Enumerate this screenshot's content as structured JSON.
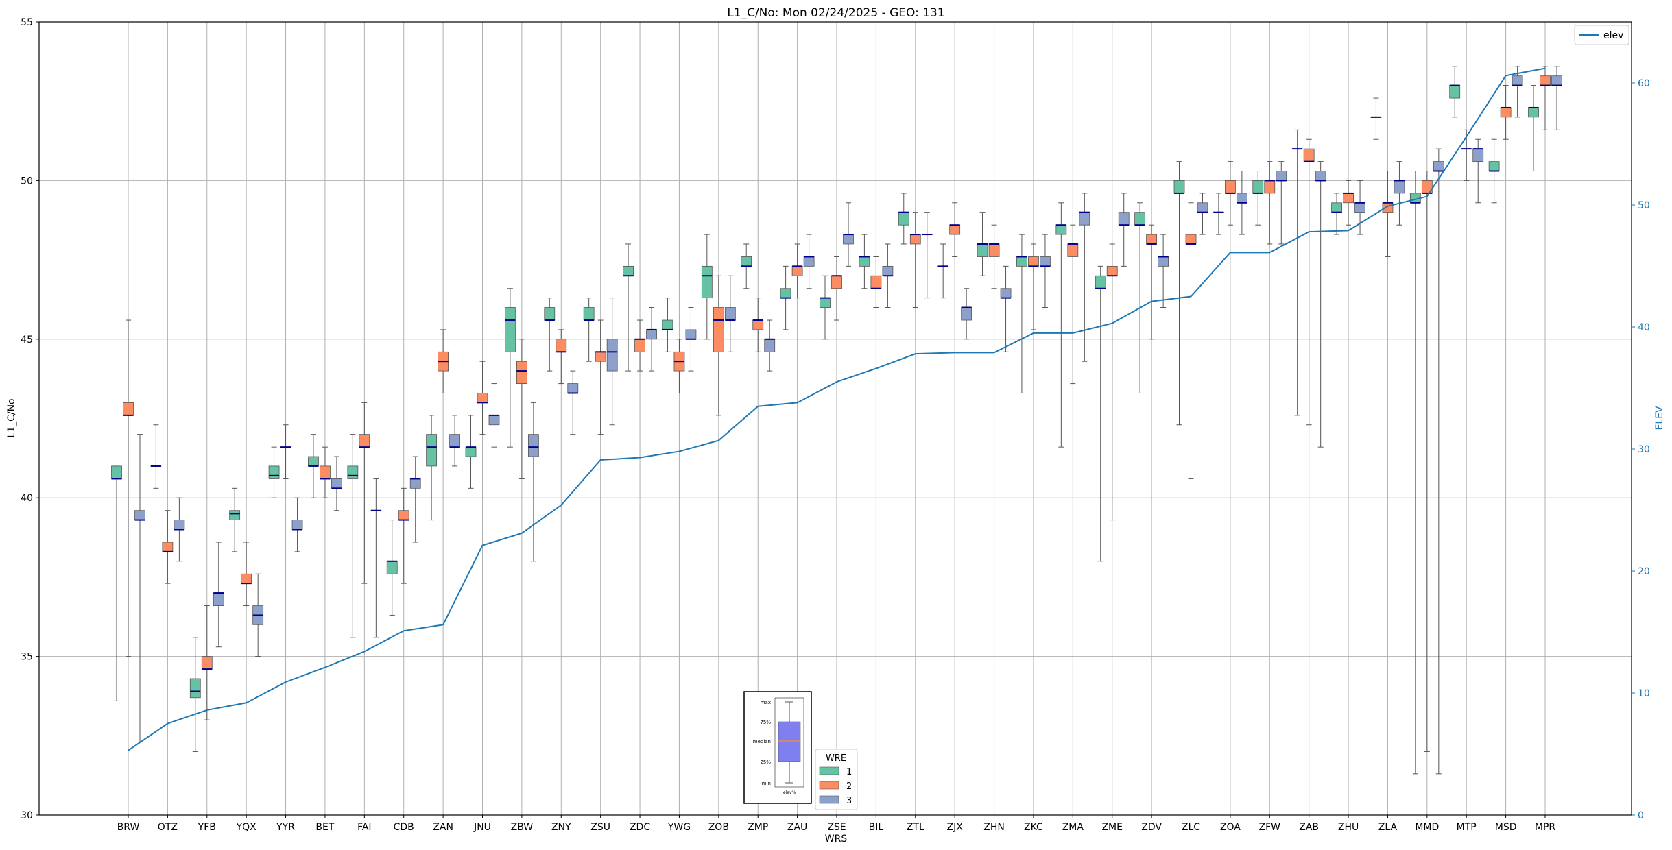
{
  "chart_data": {
    "type": "box",
    "title": "L1_C/No: Mon 02/24/2025 - GEO: 131",
    "xlabel": "WRS",
    "ylabel": "L1_C/No",
    "y2label": "ELEV",
    "ylim": [
      30,
      55
    ],
    "y2lim": [
      0,
      65
    ],
    "yticks": [
      "30",
      "35",
      "40",
      "45",
      "50",
      "55"
    ],
    "y2ticks": [
      "0",
      "10",
      "20",
      "30",
      "40",
      "50",
      "60"
    ],
    "grid": true,
    "legend_position": "top-right",
    "colors": {
      "wre1": "#66c2a5",
      "wre2": "#fc8d62",
      "wre3": "#8da0cb",
      "elev": "#1f77b4",
      "median": "#00008b",
      "whisker": "#555555",
      "grid": "#b0b0b0"
    },
    "categories": [
      "BRW",
      "OTZ",
      "YFB",
      "YQX",
      "YYR",
      "BET",
      "FAI",
      "CDB",
      "ZAN",
      "JNU",
      "ZBW",
      "ZNY",
      "ZSU",
      "ZDC",
      "YWG",
      "ZOB",
      "ZMP",
      "ZAU",
      "ZSE",
      "BIL",
      "ZTL",
      "ZJX",
      "ZHN",
      "ZKC",
      "ZMA",
      "ZME",
      "ZDV",
      "ZLC",
      "ZOA",
      "ZFW",
      "ZAB",
      "ZHU",
      "ZLA",
      "MMD",
      "MTP",
      "MSD",
      "MPR"
    ],
    "elevation_series": {
      "name": "elev",
      "values": [
        5.3,
        7.5,
        8.6,
        9.2,
        10.9,
        12.1,
        13.4,
        15.1,
        15.6,
        22.1,
        23.1,
        25.4,
        29.1,
        29.3,
        29.8,
        30.7,
        33.5,
        33.8,
        35.5,
        36.6,
        37.8,
        37.9,
        37.9,
        39.5,
        39.5,
        40.3,
        42.1,
        42.5,
        46.1,
        46.1,
        47.8,
        47.9,
        49.9,
        50.7,
        55.6,
        60.6,
        61.2
      ]
    },
    "wre_legend": {
      "title": "WRE",
      "items": [
        "1",
        "2",
        "3"
      ]
    },
    "inset_legend": {
      "labels": [
        "max",
        "75%",
        "median",
        "25%",
        "min"
      ],
      "xlabel": "elev%"
    },
    "series": [
      {
        "wre": 1,
        "stations": {
          "BRW": [
            33.6,
            40.6,
            40.6,
            41.0,
            41.0
          ],
          "OTZ": [
            40.3,
            41.0,
            41.0,
            41.0,
            42.3
          ],
          "YFB": [
            32.0,
            33.7,
            33.9,
            34.3,
            35.6
          ],
          "YQX": [
            38.3,
            39.3,
            39.5,
            39.6,
            40.3
          ],
          "YYR": [
            40.0,
            40.6,
            40.7,
            41.0,
            41.6
          ],
          "BET": [
            40.0,
            41.0,
            41.0,
            41.3,
            42.0
          ],
          "FAI": [
            35.6,
            40.6,
            40.7,
            41.0,
            42.0
          ],
          "CDB": [
            36.3,
            37.6,
            38.0,
            38.0,
            39.3
          ],
          "ZAN": [
            39.3,
            41.0,
            41.6,
            42.0,
            42.6
          ],
          "JNU": [
            40.3,
            41.3,
            41.6,
            41.6,
            42.6
          ],
          "ZBW": [
            41.6,
            44.6,
            45.6,
            46.0,
            46.6
          ],
          "ZNY": [
            44.0,
            45.6,
            45.6,
            46.0,
            46.3
          ],
          "ZSU": [
            44.3,
            45.6,
            45.6,
            46.0,
            46.3
          ],
          "ZDC": [
            44.0,
            47.0,
            47.0,
            47.3,
            48.0
          ],
          "YWG": [
            44.6,
            45.3,
            45.3,
            45.6,
            46.3
          ],
          "ZOB": [
            45.0,
            46.3,
            47.0,
            47.3,
            48.3
          ],
          "ZMP": [
            46.6,
            47.3,
            47.3,
            47.6,
            48.0
          ],
          "ZAU": [
            45.3,
            46.3,
            46.3,
            46.6,
            47.3
          ],
          "ZSE": [
            45.0,
            46.0,
            46.3,
            46.3,
            47.0
          ],
          "BIL": [
            46.6,
            47.3,
            47.6,
            47.6,
            48.3
          ],
          "ZTL": [
            48.0,
            48.6,
            49.0,
            49.0,
            49.6
          ],
          "ZJX": [
            46.3,
            47.3,
            47.3,
            47.3,
            48.0
          ],
          "ZHN": [
            47.0,
            47.6,
            48.0,
            48.0,
            49.0
          ],
          "ZKC": [
            43.3,
            47.3,
            47.6,
            47.6,
            48.3
          ],
          "ZMA": [
            41.6,
            48.3,
            48.6,
            48.6,
            49.3
          ],
          "ZME": [
            38.0,
            46.6,
            46.6,
            47.0,
            47.3
          ],
          "ZDV": [
            43.3,
            48.6,
            48.6,
            49.0,
            49.3
          ],
          "ZLC": [
            42.3,
            49.6,
            49.6,
            50.0,
            50.6
          ],
          "ZOA": [
            48.3,
            49.0,
            49.0,
            49.0,
            49.6
          ],
          "ZFW": [
            48.6,
            49.6,
            49.6,
            50.0,
            50.3
          ],
          "ZAB": [
            42.6,
            51.0,
            51.0,
            51.0,
            51.6
          ],
          "ZHU": [
            48.3,
            49.0,
            49.0,
            49.3,
            49.6
          ],
          "ZLA": [
            51.3,
            52.0,
            52.0,
            52.0,
            52.6
          ],
          "MMD": [
            31.3,
            49.3,
            49.3,
            49.6,
            50.3
          ],
          "MTP": [
            52.0,
            52.6,
            53.0,
            53.0,
            53.6
          ],
          "MSD": [
            49.3,
            50.3,
            50.3,
            50.6,
            51.3
          ],
          "MPR": [
            50.3,
            52.0,
            52.3,
            52.3,
            53.0
          ]
        }
      },
      {
        "wre": 2,
        "stations": {
          "BRW": [
            35.0,
            42.6,
            42.6,
            43.0,
            45.6
          ],
          "OTZ": [
            37.3,
            38.3,
            38.3,
            38.6,
            39.6
          ],
          "YFB": [
            33.0,
            34.6,
            34.6,
            35.0,
            36.6
          ],
          "YQX": [
            36.6,
            37.3,
            37.3,
            37.6,
            38.6
          ],
          "YYR": [
            40.6,
            41.6,
            41.6,
            41.6,
            42.3
          ],
          "BET": [
            40.0,
            40.6,
            40.6,
            41.0,
            41.6
          ],
          "FAI": [
            37.3,
            41.6,
            41.6,
            42.0,
            43.0
          ],
          "CDB": [
            37.3,
            39.3,
            39.3,
            39.6,
            40.3
          ],
          "ZAN": [
            43.3,
            44.0,
            44.3,
            44.6,
            45.3
          ],
          "JNU": [
            42.0,
            43.0,
            43.0,
            43.3,
            44.3
          ],
          "ZBW": [
            40.6,
            43.6,
            44.0,
            44.3,
            45.0
          ],
          "ZNY": [
            43.6,
            44.6,
            44.6,
            45.0,
            45.3
          ],
          "ZSU": [
            42.0,
            44.3,
            44.6,
            44.6,
            45.6
          ],
          "ZDC": [
            44.0,
            44.6,
            45.0,
            45.0,
            45.6
          ],
          "YWG": [
            43.3,
            44.0,
            44.3,
            44.6,
            45.0
          ],
          "ZOB": [
            42.6,
            44.6,
            45.6,
            46.0,
            47.0
          ],
          "ZMP": [
            44.6,
            45.3,
            45.6,
            45.6,
            46.3
          ],
          "ZAU": [
            46.3,
            47.0,
            47.3,
            47.3,
            48.0
          ],
          "ZSE": [
            45.6,
            46.6,
            47.0,
            47.0,
            47.6
          ],
          "BIL": [
            46.0,
            46.6,
            46.6,
            47.0,
            47.6
          ],
          "ZTL": [
            46.0,
            48.0,
            48.3,
            48.3,
            49.0
          ],
          "ZJX": [
            47.6,
            48.3,
            48.6,
            48.6,
            49.3
          ],
          "ZHN": [
            46.6,
            47.6,
            48.0,
            48.0,
            48.6
          ],
          "ZKC": [
            45.3,
            47.3,
            47.3,
            47.6,
            48.0
          ],
          "ZMA": [
            43.6,
            47.6,
            48.0,
            48.0,
            48.6
          ],
          "ZME": [
            39.3,
            47.0,
            47.0,
            47.3,
            48.0
          ],
          "ZDV": [
            45.0,
            48.0,
            48.0,
            48.3,
            48.6
          ],
          "ZLC": [
            40.6,
            48.0,
            48.0,
            48.3,
            49.3
          ],
          "ZOA": [
            48.6,
            49.6,
            49.6,
            50.0,
            50.6
          ],
          "ZFW": [
            48.0,
            49.6,
            50.0,
            50.0,
            50.6
          ],
          "ZAB": [
            42.3,
            50.6,
            50.6,
            51.0,
            51.3
          ],
          "ZHU": [
            48.6,
            49.3,
            49.6,
            49.6,
            50.0
          ],
          "ZLA": [
            47.6,
            49.0,
            49.3,
            49.3,
            50.3
          ],
          "MMD": [
            32.0,
            49.6,
            49.6,
            50.0,
            50.3
          ],
          "MTP": [
            50.0,
            51.0,
            51.0,
            51.0,
            51.6
          ],
          "MSD": [
            51.3,
            52.0,
            52.3,
            52.3,
            53.0
          ],
          "MPR": [
            51.6,
            53.0,
            53.0,
            53.3,
            53.6
          ]
        }
      },
      {
        "wre": 3,
        "stations": {
          "BRW": [
            32.3,
            39.3,
            39.3,
            39.6,
            42.0
          ],
          "OTZ": [
            38.0,
            39.0,
            39.0,
            39.3,
            40.0
          ],
          "YFB": [
            35.3,
            36.6,
            37.0,
            37.0,
            38.6
          ],
          "YQX": [
            35.0,
            36.0,
            36.3,
            36.6,
            37.6
          ],
          "YYR": [
            38.3,
            39.0,
            39.0,
            39.3,
            40.0
          ],
          "BET": [
            39.6,
            40.3,
            40.3,
            40.6,
            41.3
          ],
          "FAI": [
            35.6,
            39.6,
            39.6,
            39.6,
            40.6
          ],
          "CDB": [
            38.6,
            40.3,
            40.6,
            40.6,
            41.3
          ],
          "ZAN": [
            41.0,
            41.6,
            41.6,
            42.0,
            42.6
          ],
          "JNU": [
            41.6,
            42.3,
            42.6,
            42.6,
            43.6
          ],
          "ZBW": [
            38.0,
            41.3,
            41.6,
            42.0,
            43.0
          ],
          "ZNY": [
            42.0,
            43.3,
            43.3,
            43.6,
            44.0
          ],
          "ZSU": [
            42.3,
            44.0,
            44.6,
            45.0,
            46.3
          ],
          "ZDC": [
            44.0,
            45.0,
            45.3,
            45.3,
            46.0
          ],
          "YWG": [
            44.0,
            45.0,
            45.0,
            45.3,
            46.0
          ],
          "ZOB": [
            44.6,
            45.6,
            45.6,
            46.0,
            47.0
          ],
          "ZMP": [
            44.0,
            44.6,
            45.0,
            45.0,
            45.6
          ],
          "ZAU": [
            46.6,
            47.3,
            47.6,
            47.6,
            48.3
          ],
          "ZSE": [
            47.3,
            48.0,
            48.3,
            48.3,
            49.3
          ],
          "BIL": [
            46.0,
            47.0,
            47.0,
            47.3,
            48.0
          ],
          "ZTL": [
            46.3,
            48.3,
            48.3,
            48.3,
            49.0
          ],
          "ZJX": [
            45.0,
            45.6,
            46.0,
            46.0,
            46.6
          ],
          "ZHN": [
            44.6,
            46.3,
            46.3,
            46.6,
            47.3
          ],
          "ZKC": [
            46.0,
            47.3,
            47.3,
            47.6,
            48.3
          ],
          "ZMA": [
            44.3,
            48.6,
            49.0,
            49.0,
            49.6
          ],
          "ZME": [
            47.3,
            48.6,
            48.6,
            49.0,
            49.6
          ],
          "ZDV": [
            46.0,
            47.3,
            47.6,
            47.6,
            48.3
          ],
          "ZLC": [
            48.3,
            49.0,
            49.0,
            49.3,
            49.6
          ],
          "ZOA": [
            48.3,
            49.3,
            49.3,
            49.6,
            50.3
          ],
          "ZFW": [
            48.0,
            50.0,
            50.0,
            50.3,
            50.6
          ],
          "ZAB": [
            41.6,
            50.0,
            50.0,
            50.3,
            50.6
          ],
          "ZHU": [
            48.3,
            49.0,
            49.3,
            49.3,
            50.0
          ],
          "ZLA": [
            48.6,
            49.6,
            50.0,
            50.0,
            50.6
          ],
          "MMD": [
            31.3,
            50.3,
            50.3,
            50.6,
            51.0
          ],
          "MTP": [
            49.3,
            50.6,
            51.0,
            51.0,
            51.3
          ],
          "MSD": [
            52.0,
            53.0,
            53.0,
            53.3,
            53.6
          ],
          "MPR": [
            51.6,
            53.0,
            53.0,
            53.3,
            53.6
          ]
        }
      }
    ]
  }
}
